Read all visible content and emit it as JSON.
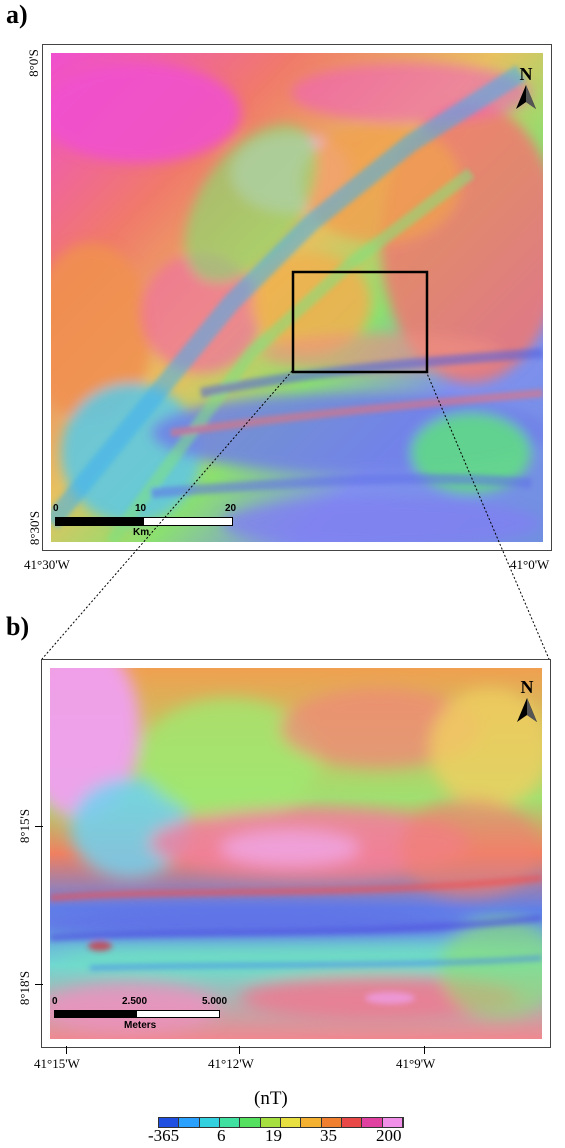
{
  "panel_a": {
    "label": "a)",
    "lat_top": "8°0'S",
    "lat_bottom": "8°30'S",
    "lon_left": "41°30'W",
    "lon_right": "41°0'W",
    "north": "N",
    "scale": {
      "ticks": [
        "0",
        "10",
        "20"
      ],
      "unit": "Km"
    }
  },
  "panel_b": {
    "label": "b)",
    "lat_1": "8°15'S",
    "lat_2": "8°18'S",
    "lon_1": "41°15'W",
    "lon_2": "41°12'W",
    "lon_3": "41°9'W",
    "north": "N",
    "scale": {
      "ticks": [
        "0",
        "2.500",
        "5.000"
      ],
      "unit": "Meters"
    }
  },
  "legend": {
    "unit": "(nT)",
    "values": [
      "-365",
      "6",
      "19",
      "35",
      "200"
    ],
    "colors": [
      "#1f4fe0",
      "#2aa0ff",
      "#33d0e0",
      "#3fe0a0",
      "#56e060",
      "#a6e040",
      "#e8e040",
      "#f4b030",
      "#f08030",
      "#e84848",
      "#e040a0",
      "#f090e8"
    ]
  }
}
